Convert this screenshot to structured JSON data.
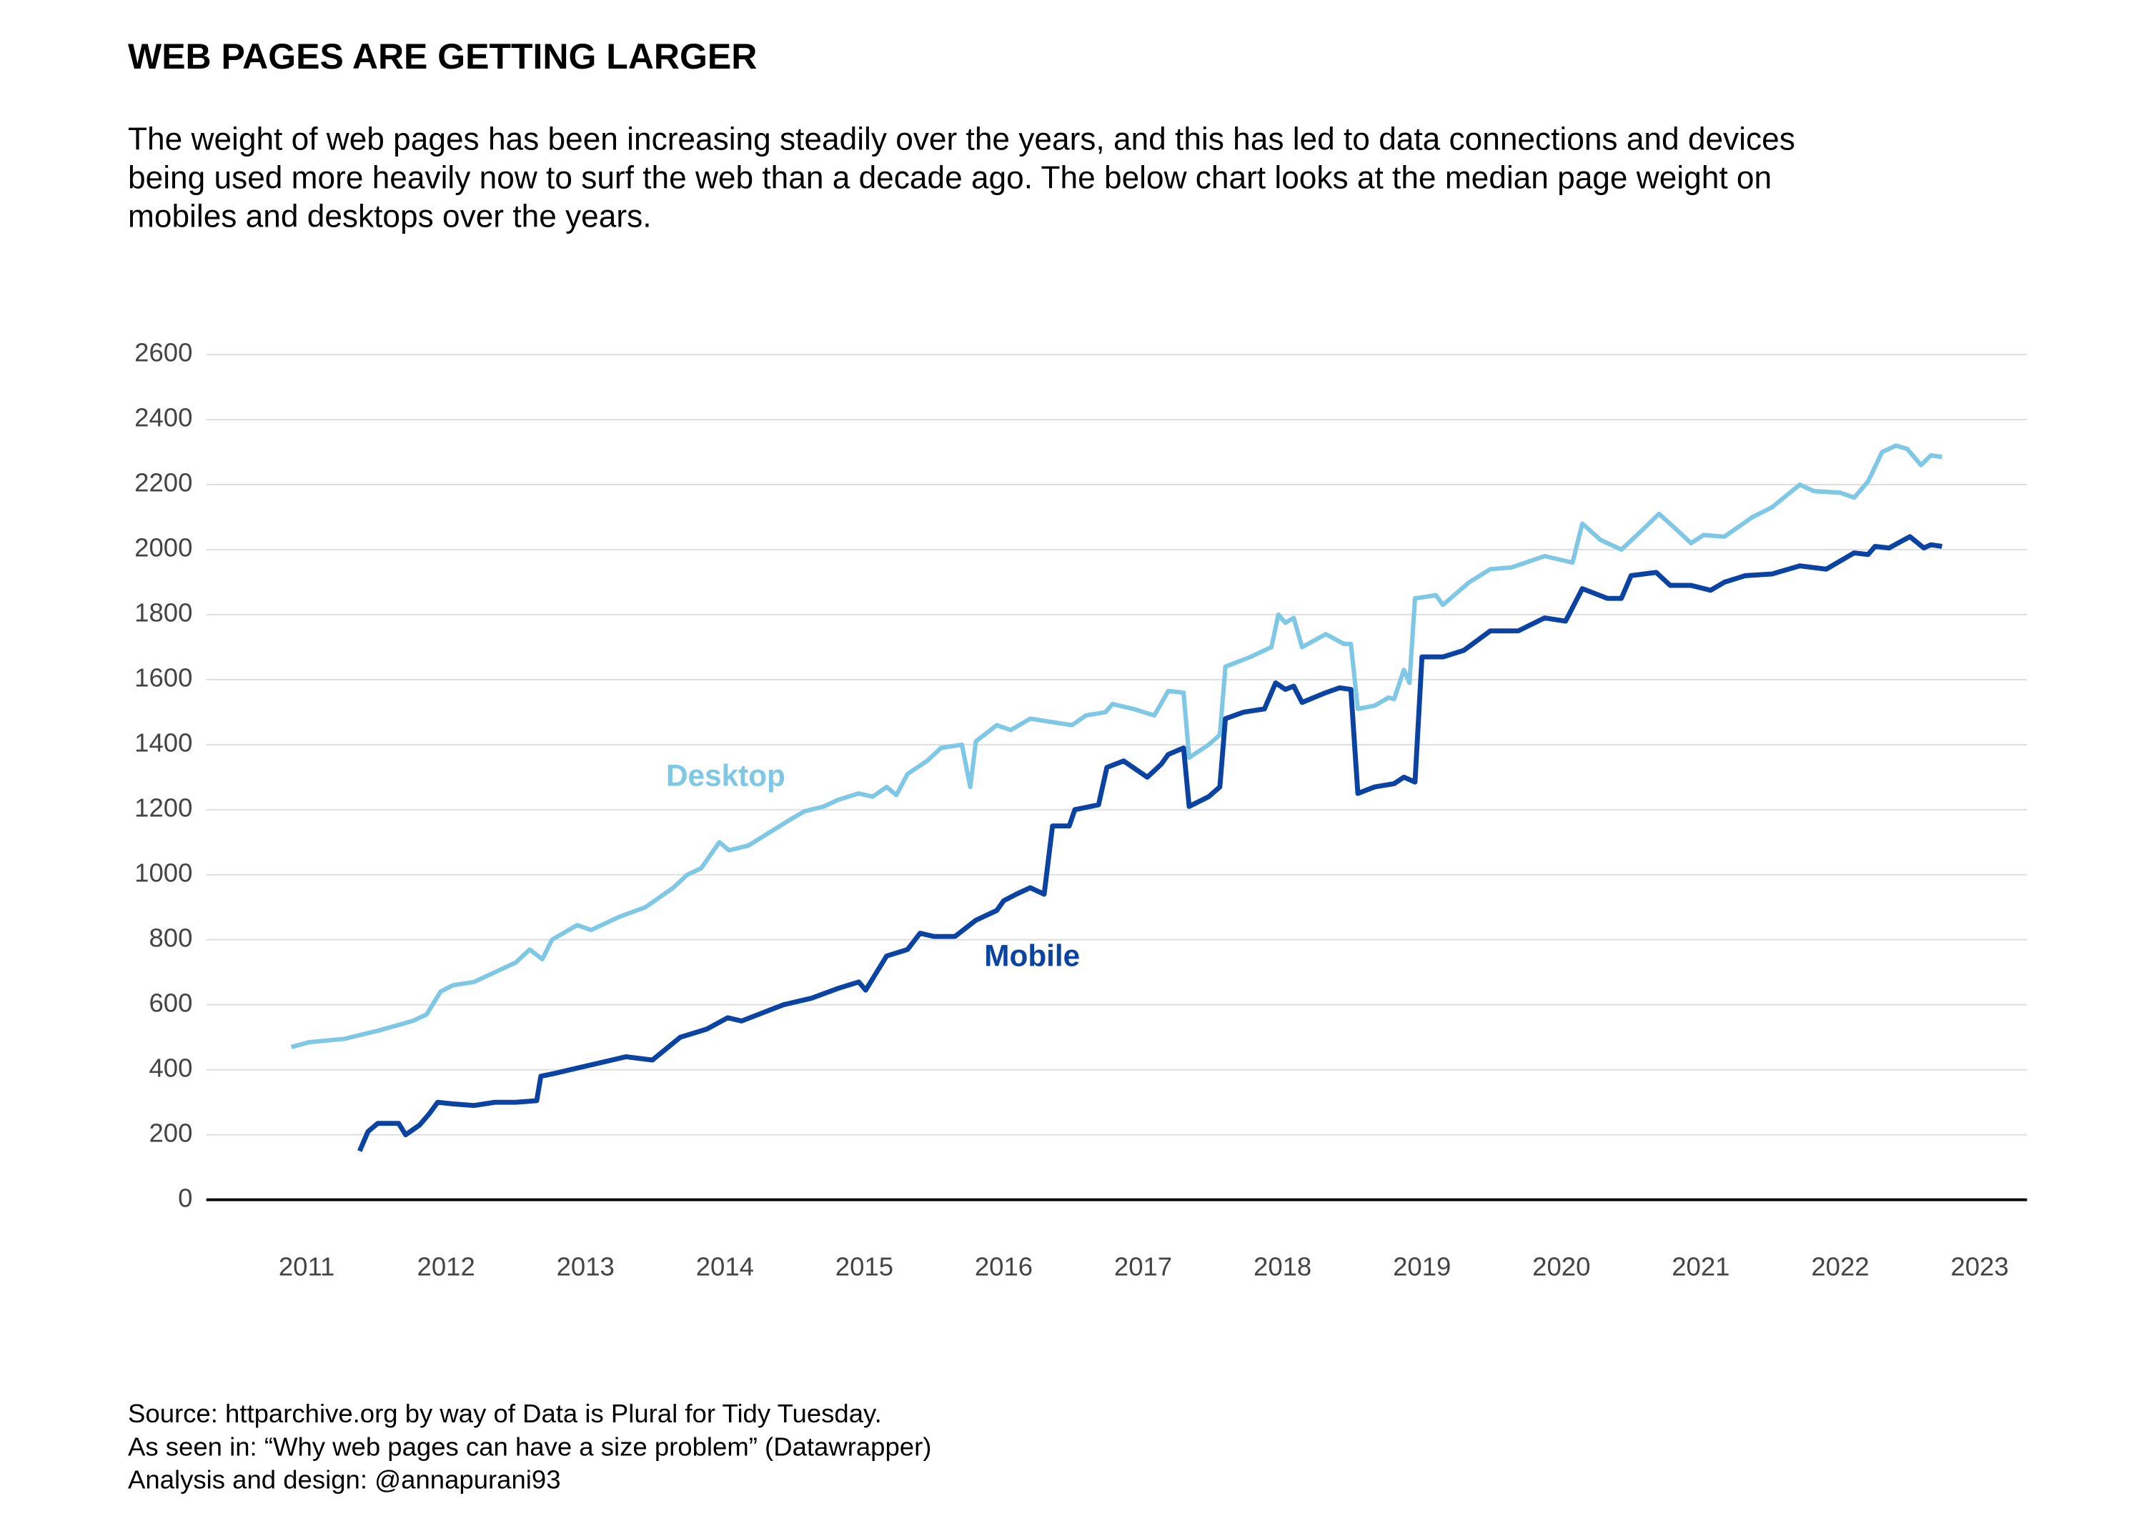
{
  "chart_data": {
    "type": "line",
    "title": "WEB PAGES ARE GETTING LARGER",
    "subtitle": [
      "The weight of web pages has been increasing steadily over the years, and this has led to data connections and devices",
      "being used more heavily now to surf the web than a decade ago. The below chart looks at the median page weight on",
      "mobiles and desktops over the years."
    ],
    "caption": [
      "Source: httparchive.org by way of Data is Plural for Tidy Tuesday.",
      "As seen in: “Why web pages can have a size problem” (Datawrapper)",
      "Analysis and design: @annapurani93"
    ],
    "xlim": [
      2010.28,
      2023.34
    ],
    "xticks": [
      2011,
      2012,
      2013,
      2014,
      2015,
      2016,
      2017,
      2018,
      2019,
      2020,
      2021,
      2022,
      2023
    ],
    "ylim": [
      0,
      2600
    ],
    "yticks": [
      0,
      200,
      400,
      600,
      800,
      1000,
      1200,
      1400,
      1600,
      1800,
      2000,
      2200,
      2400,
      2600
    ],
    "grid": true,
    "series": [
      {
        "name": "Desktop",
        "color": "#7ec8e6",
        "x": [
          2010.89,
          2011.02,
          2011.27,
          2011.51,
          2011.76,
          2011.86,
          2011.96,
          2012.05,
          2012.2,
          2012.35,
          2012.5,
          2012.6,
          2012.69,
          2012.76,
          2012.94,
          2013.04,
          2013.24,
          2013.43,
          2013.63,
          2013.73,
          2013.83,
          2013.96,
          2014.03,
          2014.17,
          2014.32,
          2014.47,
          2014.57,
          2014.71,
          2014.81,
          2014.96,
          2015.06,
          2015.16,
          2015.23,
          2015.31,
          2015.45,
          2015.55,
          2015.7,
          2015.76,
          2015.8,
          2015.95,
          2016.05,
          2016.19,
          2016.34,
          2016.49,
          2016.59,
          2016.73,
          2016.78,
          2016.93,
          2017.08,
          2017.18,
          2017.29,
          2017.33,
          2017.47,
          2017.55,
          2017.59,
          2017.77,
          2017.92,
          2017.97,
          2018.02,
          2018.08,
          2018.14,
          2018.31,
          2018.44,
          2018.49,
          2018.54,
          2018.66,
          2018.76,
          2018.8,
          2018.87,
          2018.91,
          2018.95,
          2019.1,
          2019.15,
          2019.34,
          2019.49,
          2019.64,
          2019.88,
          2020.08,
          2020.15,
          2020.28,
          2020.43,
          2020.58,
          2020.7,
          2020.83,
          2020.93,
          2021.02,
          2021.17,
          2021.37,
          2021.51,
          2021.71,
          2021.81,
          2022.0,
          2022.1,
          2022.2,
          2022.3,
          2022.4,
          2022.48,
          2022.58,
          2022.65,
          2022.73
        ],
        "values": [
          470,
          485,
          495,
          520,
          550,
          570,
          640,
          660,
          670,
          700,
          730,
          770,
          740,
          800,
          845,
          830,
          870,
          900,
          960,
          1000,
          1020,
          1100,
          1075,
          1090,
          1130,
          1170,
          1195,
          1210,
          1230,
          1250,
          1240,
          1270,
          1245,
          1310,
          1350,
          1390,
          1400,
          1270,
          1410,
          1460,
          1445,
          1480,
          1470,
          1460,
          1490,
          1500,
          1525,
          1510,
          1490,
          1565,
          1560,
          1360,
          1400,
          1430,
          1640,
          1670,
          1700,
          1800,
          1775,
          1790,
          1700,
          1740,
          1710,
          1710,
          1510,
          1520,
          1545,
          1540,
          1630,
          1590,
          1850,
          1860,
          1830,
          1900,
          1940,
          1945,
          1980,
          1960,
          2080,
          2030,
          2000,
          2060,
          2110,
          2060,
          2020,
          2045,
          2040,
          2100,
          2130,
          2200,
          2180,
          2175,
          2160,
          2210,
          2300,
          2320,
          2310,
          2260,
          2290,
          2285
        ]
      },
      {
        "name": "Mobile",
        "color": "#0b43a3",
        "x": [
          2011.38,
          2011.44,
          2011.51,
          2011.66,
          2011.71,
          2011.81,
          2011.88,
          2011.94,
          2012.05,
          2012.2,
          2012.35,
          2012.5,
          2012.65,
          2012.68,
          2012.79,
          2012.94,
          2013.09,
          2013.29,
          2013.48,
          2013.68,
          2013.87,
          2014.02,
          2014.12,
          2014.27,
          2014.42,
          2014.62,
          2014.81,
          2014.96,
          2015.01,
          2015.16,
          2015.31,
          2015.4,
          2015.5,
          2015.65,
          2015.8,
          2015.95,
          2016.0,
          2016.09,
          2016.19,
          2016.29,
          2016.35,
          2016.47,
          2016.51,
          2016.68,
          2016.74,
          2016.86,
          2017.03,
          2017.13,
          2017.18,
          2017.29,
          2017.33,
          2017.47,
          2017.55,
          2017.59,
          2017.72,
          2017.87,
          2017.95,
          2018.02,
          2018.08,
          2018.14,
          2018.31,
          2018.41,
          2018.49,
          2018.54,
          2018.66,
          2018.8,
          2018.87,
          2018.95,
          2019.0,
          2019.15,
          2019.3,
          2019.49,
          2019.69,
          2019.88,
          2020.03,
          2020.15,
          2020.33,
          2020.43,
          2020.5,
          2020.68,
          2020.78,
          2020.93,
          2021.07,
          2021.17,
          2021.32,
          2021.51,
          2021.71,
          2021.9,
          2022.1,
          2022.2,
          2022.25,
          2022.35,
          2022.5,
          2022.6,
          2022.65,
          2022.73
        ],
        "values": [
          150,
          210,
          235,
          235,
          200,
          230,
          265,
          300,
          295,
          290,
          300,
          300,
          305,
          380,
          390,
          405,
          420,
          440,
          430,
          500,
          525,
          560,
          550,
          575,
          600,
          620,
          650,
          670,
          645,
          750,
          770,
          820,
          810,
          810,
          860,
          890,
          920,
          940,
          960,
          940,
          1150,
          1150,
          1200,
          1215,
          1330,
          1350,
          1300,
          1340,
          1370,
          1390,
          1210,
          1240,
          1270,
          1480,
          1500,
          1510,
          1590,
          1570,
          1580,
          1530,
          1560,
          1575,
          1570,
          1250,
          1270,
          1280,
          1300,
          1285,
          1670,
          1670,
          1690,
          1750,
          1750,
          1790,
          1780,
          1880,
          1850,
          1850,
          1920,
          1930,
          1890,
          1890,
          1875,
          1900,
          1920,
          1925,
          1950,
          1940,
          1990,
          1985,
          2010,
          2005,
          2040,
          2005,
          2015,
          2010
        ]
      }
    ]
  }
}
